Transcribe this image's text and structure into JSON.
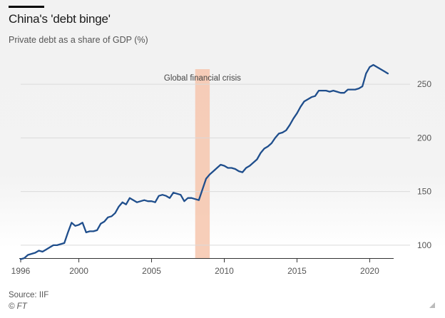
{
  "header": {
    "title": "China's 'debt binge'",
    "subtitle": "Private debt as a share of GDP (%)"
  },
  "footer": {
    "source": "Source: IIF",
    "credit": "© FT"
  },
  "colors": {
    "line": "#1f4e8c",
    "band": "#f6c5ad",
    "grid": "#dadada",
    "axis": "#333333",
    "tick_text": "#555555"
  },
  "chart_data": {
    "type": "line",
    "title": "China's 'debt binge'",
    "subtitle": "Private debt as a share of GDP (%)",
    "xlabel": "",
    "ylabel": "",
    "xlim": [
      1996,
      2021.5
    ],
    "ylim": [
      88,
      270
    ],
    "yticks": [
      100,
      150,
      200,
      250
    ],
    "xticks": [
      1996,
      2000,
      2005,
      2010,
      2015,
      2020
    ],
    "grid": true,
    "annotations": [
      {
        "label": "Global financial crisis",
        "x_start": 2008.0,
        "x_end": 2009.0
      }
    ],
    "series": [
      {
        "name": "Private debt as a share of GDP",
        "x": [
          1996.0,
          1996.25,
          1996.5,
          1996.75,
          1997.0,
          1997.25,
          1997.5,
          1997.75,
          1998.0,
          1998.25,
          1998.5,
          1998.75,
          1999.0,
          1999.25,
          1999.5,
          1999.75,
          2000.0,
          2000.25,
          2000.5,
          2000.75,
          2001.0,
          2001.25,
          2001.5,
          2001.75,
          2002.0,
          2002.25,
          2002.5,
          2002.75,
          2003.0,
          2003.25,
          2003.5,
          2003.75,
          2004.0,
          2004.25,
          2004.5,
          2004.75,
          2005.0,
          2005.25,
          2005.5,
          2005.75,
          2006.0,
          2006.25,
          2006.5,
          2006.75,
          2007.0,
          2007.25,
          2007.5,
          2007.75,
          2008.0,
          2008.25,
          2008.5,
          2008.75,
          2009.0,
          2009.25,
          2009.5,
          2009.75,
          2010.0,
          2010.25,
          2010.5,
          2010.75,
          2011.0,
          2011.25,
          2011.5,
          2011.75,
          2012.0,
          2012.25,
          2012.5,
          2012.75,
          2013.0,
          2013.25,
          2013.5,
          2013.75,
          2014.0,
          2014.25,
          2014.5,
          2014.75,
          2015.0,
          2015.25,
          2015.5,
          2015.75,
          2016.0,
          2016.25,
          2016.5,
          2016.75,
          2017.0,
          2017.25,
          2017.5,
          2017.75,
          2018.0,
          2018.25,
          2018.5,
          2018.75,
          2019.0,
          2019.25,
          2019.5,
          2019.75,
          2020.0,
          2020.25,
          2020.5,
          2020.75,
          2021.0,
          2021.25
        ],
        "y": [
          87,
          88,
          91,
          92,
          93,
          95,
          94,
          96,
          98,
          100,
          100,
          101,
          102,
          112,
          121,
          118,
          119,
          121,
          112,
          113,
          113,
          114,
          120,
          122,
          126,
          127,
          130,
          136,
          140,
          138,
          144,
          142,
          140,
          141,
          142,
          141,
          141,
          140,
          146,
          147,
          146,
          144,
          149,
          148,
          147,
          141,
          144,
          144,
          143,
          142,
          152,
          162,
          166,
          169,
          172,
          175,
          174,
          172,
          172,
          171,
          169,
          168,
          172,
          174,
          177,
          180,
          186,
          190,
          192,
          195,
          200,
          204,
          205,
          207,
          212,
          218,
          223,
          229,
          234,
          236,
          238,
          239,
          244,
          244,
          244,
          243,
          244,
          243,
          242,
          242,
          245,
          245,
          245,
          246,
          248,
          260,
          266,
          268,
          266,
          264,
          262,
          260
        ]
      }
    ]
  }
}
